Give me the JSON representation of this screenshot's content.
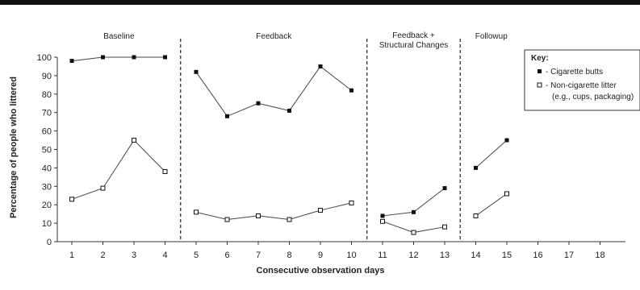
{
  "chart_data": {
    "type": "line",
    "xlabel": "Consecutive observation days",
    "ylabel": "Percentage of people who littered",
    "ylim": [
      0,
      100
    ],
    "yticks": [
      0,
      10,
      20,
      30,
      40,
      50,
      60,
      70,
      80,
      90,
      100
    ],
    "xlim": [
      0.5,
      18.5
    ],
    "xticks": [
      1,
      2,
      3,
      4,
      5,
      6,
      7,
      8,
      9,
      10,
      11,
      12,
      13,
      14,
      15,
      16,
      17,
      18
    ],
    "grid": false,
    "phases": [
      {
        "label_lines": [
          "Baseline"
        ],
        "days": [
          1,
          4
        ]
      },
      {
        "label_lines": [
          "Feedback"
        ],
        "days": [
          5,
          10
        ]
      },
      {
        "label_lines": [
          "Feedback +",
          "Structural Changes"
        ],
        "days": [
          11,
          13
        ]
      },
      {
        "label_lines": [
          "Followup"
        ],
        "days": [
          14,
          18
        ]
      }
    ],
    "phase_boundaries": [
      4.5,
      10.5,
      13.5
    ],
    "series": [
      {
        "name": "- Cigarette butts",
        "marker": "filled-square",
        "segments": [
          {
            "x": [
              1,
              2,
              3,
              4
            ],
            "y": [
              98,
              100,
              100,
              100
            ]
          },
          {
            "x": [
              5,
              6,
              7,
              8,
              9,
              10
            ],
            "y": [
              92,
              68,
              75,
              71,
              95,
              82
            ]
          },
          {
            "x": [
              11,
              12,
              13
            ],
            "y": [
              14,
              16,
              29
            ]
          },
          {
            "x": [
              14,
              15
            ],
            "y": [
              40,
              55
            ]
          }
        ]
      },
      {
        "name": "- Non-cigarette litter",
        "name_line2": "(e.g., cups, packaging)",
        "marker": "open-square",
        "segments": [
          {
            "x": [
              1,
              2,
              3,
              4
            ],
            "y": [
              23,
              29,
              55,
              38
            ]
          },
          {
            "x": [
              5,
              6,
              7,
              8,
              9,
              10
            ],
            "y": [
              16,
              12,
              14,
              12,
              17,
              21
            ]
          },
          {
            "x": [
              11,
              12,
              13
            ],
            "y": [
              11,
              5,
              8
            ]
          },
          {
            "x": [
              14,
              15
            ],
            "y": [
              14,
              26
            ]
          }
        ]
      }
    ],
    "legend": {
      "title": "Key:",
      "placement": "top-right"
    }
  }
}
